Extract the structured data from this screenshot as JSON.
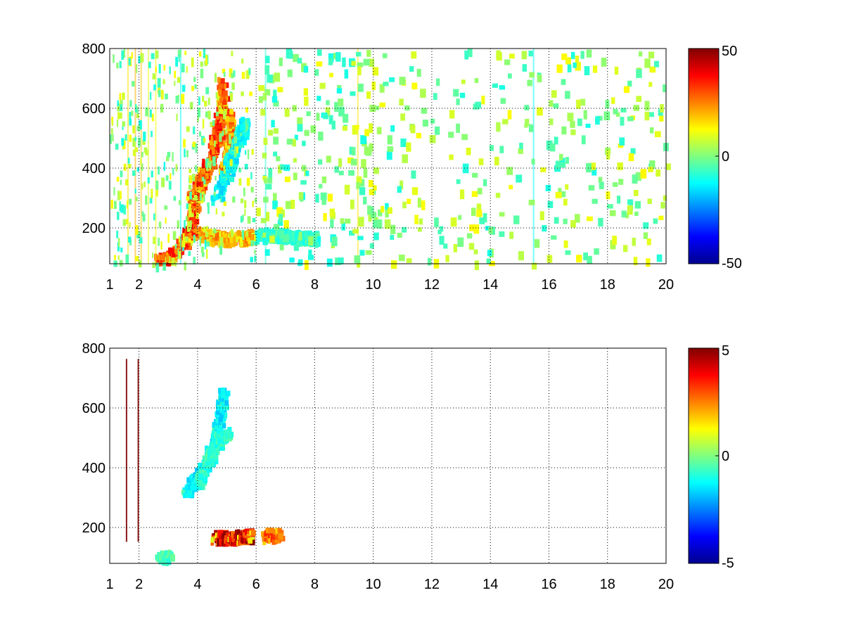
{
  "chart_data": [
    {
      "type": "heatmap",
      "title": "",
      "xlabel": "",
      "ylabel": "",
      "xlim": [
        1,
        20
      ],
      "ylim": [
        80,
        800
      ],
      "xticks": [
        1,
        2,
        4,
        6,
        8,
        10,
        12,
        14,
        16,
        18,
        20
      ],
      "yticks": [
        200,
        400,
        600,
        800
      ],
      "grid": true,
      "grid_x": [
        2,
        4,
        6,
        8,
        10,
        12,
        14,
        16,
        18,
        20
      ],
      "grid_y": [
        200,
        400,
        600,
        800
      ],
      "colormap": "jet",
      "colorbar": {
        "min": -50,
        "max": 50,
        "ticks": [
          50,
          0,
          -50
        ]
      },
      "features": [
        {
          "shape": "band",
          "points": [
            [
              2.6,
              85
            ],
            [
              3.0,
              100
            ],
            [
              3.5,
              150
            ],
            [
              3.8,
              200
            ],
            [
              3.8,
              300
            ],
            [
              4.0,
              340
            ],
            [
              4.3,
              400
            ],
            [
              4.6,
              500
            ],
            [
              4.8,
              600
            ],
            [
              4.8,
              680
            ]
          ],
          "value": 35,
          "width": 0.35
        },
        {
          "shape": "band",
          "points": [
            [
              4.8,
              380
            ],
            [
              5.0,
              450
            ],
            [
              5.1,
              520
            ],
            [
              5.0,
              580
            ]
          ],
          "value": 28,
          "width": 0.22
        },
        {
          "shape": "band",
          "points": [
            [
              4.1,
              180
            ],
            [
              4.5,
              165
            ],
            [
              5.0,
              160
            ],
            [
              5.6,
              165
            ],
            [
              5.9,
              170
            ]
          ],
          "value": 25,
          "width": 0.25
        },
        {
          "shape": "band",
          "points": [
            [
              4.6,
              300
            ],
            [
              5.0,
              400
            ],
            [
              5.3,
              480
            ],
            [
              5.6,
              550
            ]
          ],
          "value": -15,
          "width": 0.35
        },
        {
          "shape": "band",
          "points": [
            [
              6.0,
              170
            ],
            [
              6.5,
              175
            ],
            [
              7.0,
              170
            ],
            [
              7.5,
              165
            ],
            [
              8.0,
              160
            ]
          ],
          "value": -10,
          "width": 0.2
        }
      ],
      "vertical_lines": [
        {
          "x": 1.6,
          "value": 15
        },
        {
          "x": 1.85,
          "value": 20
        },
        {
          "x": 2.05,
          "value": 18
        },
        {
          "x": 2.3,
          "value": 10
        },
        {
          "x": 2.55,
          "value": 12
        },
        {
          "x": 3.4,
          "value": -12
        },
        {
          "x": 6.3,
          "value": -8
        },
        {
          "x": 9.45,
          "value": 15
        },
        {
          "x": 15.45,
          "value": -12
        }
      ]
    },
    {
      "type": "heatmap",
      "title": "",
      "xlabel": "",
      "ylabel": "",
      "xlim": [
        1,
        20
      ],
      "ylim": [
        80,
        800
      ],
      "xticks": [
        1,
        2,
        4,
        6,
        8,
        10,
        12,
        14,
        16,
        18,
        20
      ],
      "yticks": [
        200,
        400,
        600,
        800
      ],
      "grid": true,
      "grid_x": [
        2,
        4,
        6,
        8,
        10,
        12,
        14,
        16,
        18,
        20
      ],
      "grid_y": [
        200,
        400,
        600,
        800
      ],
      "colormap": "jet",
      "colorbar": {
        "min": -5,
        "max": 5,
        "ticks": [
          5,
          0,
          -5
        ]
      },
      "features": [
        {
          "shape": "band",
          "points": [
            [
              3.6,
              320
            ],
            [
              3.9,
              360
            ],
            [
              4.2,
              400
            ],
            [
              4.5,
              470
            ],
            [
              4.7,
              560
            ],
            [
              4.8,
              650
            ]
          ],
          "value": -1.6,
          "width": 0.3
        },
        {
          "shape": "band",
          "points": [
            [
              4.0,
              350
            ],
            [
              4.3,
              420
            ],
            [
              4.6,
              480
            ],
            [
              5.0,
              520
            ]
          ],
          "value": -1.0,
          "width": 0.25
        },
        {
          "shape": "band",
          "points": [
            [
              4.5,
              165
            ],
            [
              5.0,
              163
            ],
            [
              5.5,
              168
            ],
            [
              5.8,
              168
            ]
          ],
          "value": 4.5,
          "width": 0.18
        },
        {
          "shape": "band",
          "points": [
            [
              6.2,
              170
            ],
            [
              6.8,
              172
            ]
          ],
          "value": 3.0,
          "width": 0.12
        },
        {
          "shape": "band",
          "points": [
            [
              2.6,
              90
            ],
            [
              3.0,
              100
            ]
          ],
          "value": -0.8,
          "width": 0.15
        }
      ],
      "vertical_lines": [
        {
          "x": 1.55,
          "value": 5
        },
        {
          "x": 1.95,
          "value": 5
        }
      ]
    }
  ]
}
